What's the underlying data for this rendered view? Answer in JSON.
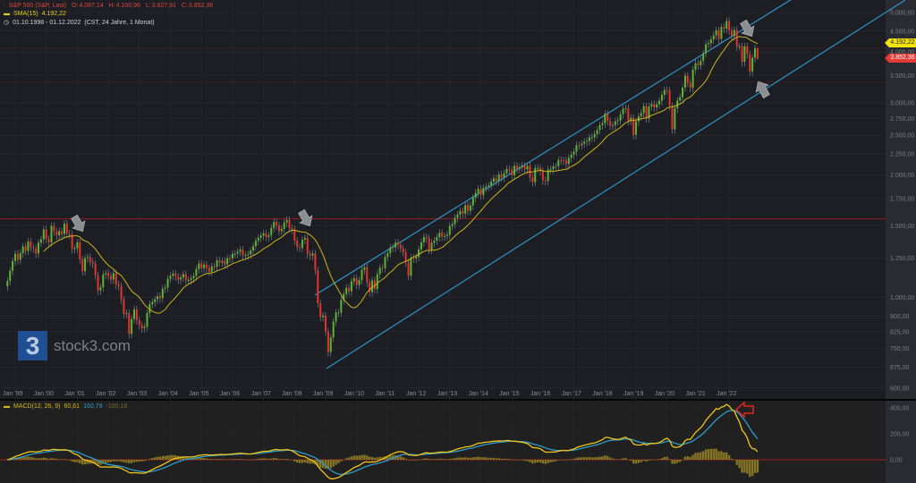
{
  "header": {
    "symbol_icon": "candlestick-icon",
    "instrument": "S&P 500 (S&P, Last)",
    "ohlc": {
      "o_label": "O:",
      "o": "4.087,14",
      "h_label": "H:",
      "h": "4.100,96",
      "l_label": "L:",
      "l": "3.827,91",
      "c_label": "C:",
      "c": "3.852,36"
    },
    "sma_label": "SMA(15)",
    "sma_value": "4.192,22",
    "range_icon": "clock-icon",
    "date_range": "01.10.1998 - 01.12.2022",
    "range_info": "(CST, 24 Jahre, 1 Monat)"
  },
  "price_tags": {
    "sma": "4.192,22",
    "last": "3.852,36"
  },
  "logo": {
    "mark": "3",
    "text": "stock3.com"
  },
  "macd_legend": {
    "label": "MACD(12, 26, 9)",
    "macd": "60,61",
    "signal": "160,79",
    "histogram": "-100,18"
  },
  "colors": {
    "up": "#5cb531",
    "down": "#e0352d",
    "sma": "#c9b418",
    "channel": "#2f93c9",
    "macd": "#f0c419",
    "signal": "#2f9cc9",
    "histogram": "#857425",
    "resistance": "#8e1d22",
    "arrow": "#8c8d90",
    "annotation": "#e8231d"
  },
  "chart_data": [
    {
      "type": "candlestick",
      "title": "S&P 500 (S&P, Last)",
      "x_start": "1998-10",
      "interval": "1 Monat",
      "y_scale": "log",
      "ylim": [
        560,
        5300
      ],
      "grid": true,
      "y_ticks": [
        "5.000,00",
        "4.500,00",
        "4.000,00",
        "3.500,00",
        "3.000,00",
        "2.750,00",
        "2.500,00",
        "2.250,00",
        "2.000,00",
        "1.750,00",
        "1.500,00",
        "1.250,00",
        "1.000,00",
        "900,00",
        "825,00",
        "750,00",
        "675,00",
        "600,00"
      ],
      "y_tick_values": [
        5000,
        4500,
        4000,
        3500,
        3000,
        2750,
        2500,
        2250,
        2000,
        1750,
        1500,
        1250,
        1000,
        900,
        825,
        750,
        675,
        600
      ],
      "x_ticks": [
        "Jan '99",
        "Jan '00",
        "Jan '01",
        "Jan '02",
        "Jan '03",
        "Jan '04",
        "Jan '05",
        "Jan '06",
        "Jan '07",
        "Jan '08",
        "Jan '09",
        "Jan '10",
        "Jan '11",
        "Jan '12",
        "Jan '13",
        "Jan '14",
        "Jan '15",
        "Jan '16",
        "Jan '17",
        "Jan '18",
        "Jan '19",
        "Jan '20",
        "Jan '21",
        "Jan '22"
      ],
      "close": [
        1098,
        1163,
        1229,
        1280,
        1238,
        1286,
        1335,
        1302,
        1373,
        1329,
        1320,
        1283,
        1363,
        1389,
        1469,
        1394,
        1366,
        1499,
        1452,
        1421,
        1455,
        1431,
        1518,
        1437,
        1429,
        1315,
        1320,
        1366,
        1240,
        1160,
        1249,
        1256,
        1224,
        1211,
        1134,
        1041,
        1060,
        1139,
        1148,
        1130,
        1107,
        1147,
        1077,
        1067,
        990,
        912,
        916,
        815,
        886,
        936,
        880,
        856,
        841,
        848,
        917,
        964,
        975,
        990,
        1008,
        996,
        1051,
        1058,
        1112,
        1131,
        1145,
        1126,
        1107,
        1121,
        1141,
        1102,
        1104,
        1115,
        1130,
        1174,
        1212,
        1181,
        1204,
        1181,
        1157,
        1192,
        1191,
        1234,
        1220,
        1229,
        1207,
        1249,
        1248,
        1280,
        1281,
        1295,
        1311,
        1270,
        1270,
        1277,
        1304,
        1336,
        1378,
        1401,
        1418,
        1438,
        1407,
        1421,
        1482,
        1531,
        1503,
        1455,
        1474,
        1527,
        1549,
        1481,
        1468,
        1379,
        1331,
        1323,
        1386,
        1400,
        1280,
        1267,
        1283,
        1166,
        969,
        896,
        903,
        826,
        735,
        798,
        873,
        919,
        919,
        987,
        1021,
        1057,
        1036,
        1096,
        1115,
        1074,
        1104,
        1169,
        1187,
        1089,
        1031,
        1102,
        1049,
        1141,
        1183,
        1181,
        1258,
        1286,
        1327,
        1326,
        1364,
        1345,
        1321,
        1292,
        1219,
        1131,
        1253,
        1247,
        1258,
        1312,
        1366,
        1408,
        1398,
        1310,
        1362,
        1379,
        1407,
        1441,
        1412,
        1416,
        1426,
        1498,
        1515,
        1569,
        1598,
        1631,
        1606,
        1686,
        1633,
        1682,
        1757,
        1806,
        1848,
        1783,
        1859,
        1872,
        1884,
        1924,
        1960,
        1931,
        2003,
        1972,
        2018,
        2068,
        2059,
        1995,
        2105,
        2068,
        2086,
        2107,
        2063,
        2104,
        1972,
        1920,
        2079,
        2080,
        2044,
        1940,
        1932,
        2060,
        2065,
        2097,
        2099,
        2174,
        2171,
        2168,
        2126,
        2199,
        2239,
        2279,
        2364,
        2363,
        2384,
        2412,
        2423,
        2470,
        2472,
        2519,
        2575,
        2648,
        2674,
        2824,
        2714,
        2641,
        2648,
        2705,
        2718,
        2816,
        2902,
        2914,
        2712,
        2760,
        2507,
        2704,
        2784,
        2834,
        2946,
        2752,
        2942,
        2980,
        2926,
        2977,
        3038,
        3141,
        3231,
        3226,
        2954,
        2585,
        2912,
        3044,
        3100,
        3271,
        3500,
        3363,
        3270,
        3622,
        3756,
        3714,
        3811,
        3973,
        4181,
        4204,
        4298,
        4395,
        4523,
        4308,
        4605,
        4567,
        4766,
        4516,
        4374,
        4530,
        4132,
        4132,
        3785,
        4130,
        3955,
        3586,
        3872,
        4087.14,
        3852.36
      ],
      "last_candle": {
        "open": 4087.14,
        "high": 4100.96,
        "low": 3827.91,
        "close": 3852.36
      },
      "overlays": [
        {
          "name": "SMA(15)",
          "period": 15
        }
      ],
      "trend_channel": "ascending",
      "resistance_line": 1560
    },
    {
      "type": "line",
      "title": "MACD(12, 26, 9)",
      "series": [
        {
          "name": "MACD",
          "fast": 12,
          "slow": 26
        },
        {
          "name": "Signal",
          "period": 9
        },
        {
          "name": "Histogram"
        }
      ],
      "y_ticks": [
        "400,00",
        "200,00",
        "0,00"
      ],
      "y_tick_values": [
        400,
        200,
        0
      ]
    }
  ]
}
